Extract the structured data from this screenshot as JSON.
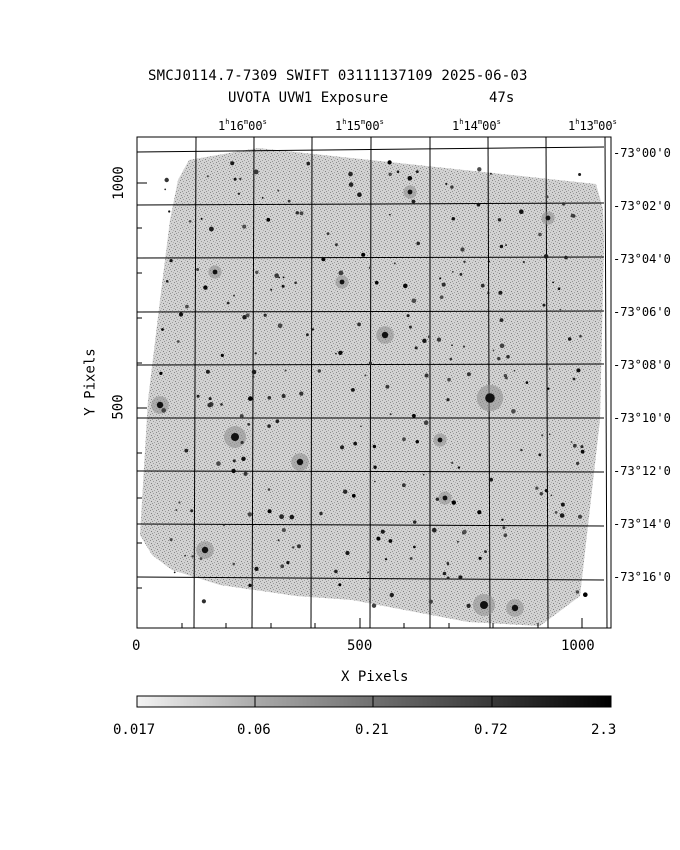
{
  "title": {
    "line1": "SMCJ0114.7-7309 SWIFT 03111137109 2025-06-03",
    "line2": "UVOTA UVW1 Exposure",
    "exposure": "47s"
  },
  "ra_ticks": [
    {
      "h": "1",
      "m": "16",
      "s": "00"
    },
    {
      "h": "1",
      "m": "15",
      "s": "00"
    },
    {
      "h": "1",
      "m": "14",
      "s": "00"
    },
    {
      "h": "1",
      "m": "13",
      "s": "00"
    }
  ],
  "dec_ticks": [
    "-73°00'0",
    "-73°02'0",
    "-73°04'0",
    "-73°06'0",
    "-73°08'0",
    "-73°10'0",
    "-73°12'0",
    "-73°14'0",
    "-73°16'0"
  ],
  "x_axis": {
    "label": "X Pixels",
    "ticks": [
      "0",
      "500",
      "1000"
    ]
  },
  "y_axis": {
    "label": "Y Pixels",
    "ticks": [
      "500",
      "1000"
    ]
  },
  "colorbar": {
    "ticks": [
      "0.017",
      "0.06",
      "0.21",
      "0.72",
      "2.3"
    ],
    "scale": "log",
    "cmap": "gray-inverted"
  }
}
